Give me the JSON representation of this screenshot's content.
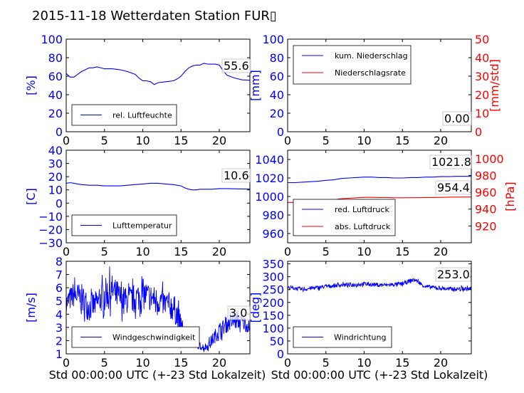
{
  "title": "2015-11-18 Wetterdaten Station FUR▯",
  "xlabel": "Std 00:00:00 UTC (+-23 Std Lokalzeit)",
  "colors": {
    "blue": "#0000ff",
    "red": "#ff0000",
    "axis": "#000000"
  },
  "chart_data": [
    {
      "type": "line",
      "panel": "humidity",
      "ylabel": "[%]",
      "xlim": [
        0,
        24
      ],
      "ylim": [
        0,
        100
      ],
      "xticks": [
        0,
        5,
        10,
        15,
        20
      ],
      "yticks": [
        0,
        20,
        40,
        60,
        80,
        100
      ],
      "legend": [
        "rel. Luftfeuchte"
      ],
      "last_value": "55.6",
      "series": [
        {
          "name": "rel. Luftfeuchte",
          "color": "#0000ff",
          "x": [
            0,
            0.5,
            1,
            1.5,
            2,
            2.5,
            3,
            3.5,
            4,
            5,
            6,
            7,
            8,
            9,
            9.5,
            10,
            10.5,
            11,
            11.5,
            12,
            13,
            14,
            14.5,
            15,
            15.5,
            16,
            16.5,
            17,
            17.5,
            18,
            18.5,
            19,
            19.5,
            20,
            20.5,
            21,
            22,
            23,
            24
          ],
          "y": [
            63,
            59,
            59,
            62,
            65,
            67,
            69,
            69,
            70,
            68,
            68,
            67,
            65,
            62,
            58,
            55,
            55,
            54,
            51,
            53,
            54,
            55,
            57,
            60,
            65,
            69,
            71,
            72,
            72,
            74,
            73,
            73,
            73,
            72,
            66,
            61,
            58,
            56,
            55.6
          ]
        }
      ]
    },
    {
      "type": "line",
      "panel": "precipitation",
      "ylabel": "[mm]",
      "ylabel_right": "[mm/std]",
      "xlim": [
        0,
        24
      ],
      "ylim": [
        0,
        100
      ],
      "ylim_right": [
        0,
        50
      ],
      "xticks": [
        0,
        5,
        10,
        15,
        20
      ],
      "yticks": [
        0,
        20,
        40,
        60,
        80,
        100
      ],
      "yticks_right": [
        0,
        10,
        20,
        30,
        40,
        50
      ],
      "legend": [
        "kum. Niederschlag",
        "Niederschlagsrate"
      ],
      "last_value": "0.00",
      "series": [
        {
          "name": "kum. Niederschlag",
          "color": "#0000ff",
          "x": [
            0,
            24
          ],
          "y": [
            0,
            0
          ]
        },
        {
          "name": "Niederschlagsrate",
          "color": "#ff0000",
          "x": [
            0,
            24
          ],
          "y": [
            0,
            0
          ]
        }
      ]
    },
    {
      "type": "line",
      "panel": "temperature",
      "ylabel": "[C]",
      "xlim": [
        0,
        24
      ],
      "ylim": [
        -30,
        40
      ],
      "xticks": [
        0,
        5,
        10,
        15,
        20
      ],
      "yticks": [
        -30,
        -20,
        -10,
        0,
        10,
        20,
        30,
        40
      ],
      "legend": [
        "Lufttemperatur"
      ],
      "last_value": "10.6",
      "series": [
        {
          "name": "Lufttemperatur",
          "color": "#0000ff",
          "x": [
            0,
            0.5,
            1,
            2,
            3,
            4,
            5,
            6,
            7,
            8,
            9,
            10,
            11,
            12,
            13,
            14,
            15,
            15.5,
            16,
            16.5,
            17,
            17.5,
            18,
            19,
            20,
            21,
            22,
            23,
            24
          ],
          "y": [
            15,
            15.5,
            15,
            14,
            13.5,
            13.5,
            13,
            13,
            13,
            13.5,
            14,
            14.5,
            15,
            15,
            14.5,
            14,
            13,
            11.5,
            10.5,
            10,
            10,
            10.5,
            10.5,
            10.5,
            11,
            11,
            10.8,
            10.7,
            10.6
          ]
        }
      ]
    },
    {
      "type": "line",
      "panel": "pressure",
      "ylabel": "[hPa]",
      "xlim": [
        0,
        24
      ],
      "ylim": [
        950,
        1050
      ],
      "ylim_right": [
        900,
        1010
      ],
      "xticks": [
        0,
        5,
        10,
        15,
        20
      ],
      "yticks": [
        960,
        980,
        1000,
        1020,
        1040
      ],
      "yticks_right": [
        920,
        940,
        960,
        980,
        1000
      ],
      "legend": [
        "red. Luftdruck",
        "abs. Luftdruck"
      ],
      "last_value": "1021.8",
      "last_value_right": "954.4",
      "series": [
        {
          "name": "red. Luftdruck",
          "color": "#0000ff",
          "axis": "left",
          "x": [
            0,
            1,
            2,
            3,
            4,
            5,
            6,
            7,
            8,
            9,
            10,
            11,
            12,
            13,
            14,
            15,
            16,
            17,
            18,
            19,
            20,
            21,
            22,
            23,
            24
          ],
          "y": [
            1015,
            1015,
            1015.5,
            1016,
            1016.5,
            1017.5,
            1018,
            1019.5,
            1020,
            1020.5,
            1021,
            1021,
            1020.5,
            1020.5,
            1020,
            1020,
            1020.5,
            1020.5,
            1021,
            1021,
            1021.5,
            1021.5,
            1021.8,
            1021.8,
            1021.8
          ]
        },
        {
          "name": "abs. Luftdruck",
          "color": "#ff0000",
          "axis": "right",
          "x": [
            0,
            1,
            2,
            3,
            4,
            5,
            6,
            7,
            8,
            9,
            10,
            11,
            12,
            13,
            14,
            15,
            16,
            17,
            18,
            19,
            20,
            21,
            22,
            23,
            24
          ],
          "y": [
            948,
            948,
            948.5,
            949,
            949.5,
            950.5,
            951,
            952.5,
            953,
            953.5,
            954,
            954,
            953.8,
            953.8,
            953.5,
            953.5,
            953.6,
            953.6,
            953.8,
            953.8,
            954,
            954.2,
            954.3,
            954.4,
            954.4
          ]
        }
      ]
    },
    {
      "type": "line",
      "panel": "windspeed",
      "ylabel": "[m/s]",
      "xlim": [
        0,
        24
      ],
      "ylim": [
        1,
        8
      ],
      "xticks": [
        0,
        5,
        10,
        15,
        20
      ],
      "yticks": [
        1,
        2,
        3,
        4,
        5,
        6,
        7,
        8
      ],
      "legend": [
        "Windgeschwindigkeit"
      ],
      "last_value": "3.0",
      "series": [
        {
          "name": "Windgeschwindigkeit",
          "color": "#0000ff",
          "noisy": true,
          "x": [
            0,
            1,
            2,
            3,
            4,
            5,
            6,
            7,
            8,
            9,
            10,
            11,
            12,
            13,
            14,
            14.5,
            15,
            15.5,
            16,
            16.5,
            17,
            17.5,
            18,
            18.5,
            19,
            20,
            21,
            22,
            23,
            24
          ],
          "y": [
            4.8,
            5.5,
            5.2,
            4.5,
            4.8,
            5.5,
            5.8,
            5.2,
            5.0,
            5.2,
            5.5,
            5.3,
            5.0,
            4.8,
            4.5,
            4.0,
            3.0,
            2.6,
            2.2,
            2.0,
            1.7,
            1.6,
            1.5,
            1.6,
            2.0,
            2.8,
            3.2,
            3.5,
            3.4,
            3.0
          ],
          "amplitude": [
            0.8,
            1.0,
            1.1,
            1.1,
            1.0,
            1.2,
            1.2,
            1.1,
            1.0,
            1.1,
            1.2,
            1.0,
            1.0,
            1.0,
            1.1,
            1.0,
            0.9,
            0.6,
            0.5,
            0.4,
            0.3,
            0.3,
            0.3,
            0.3,
            0.5,
            0.6,
            0.6,
            0.6,
            0.6,
            0.5
          ]
        }
      ]
    },
    {
      "type": "line",
      "panel": "winddirection",
      "ylabel": "[deg]",
      "xlim": [
        0,
        24
      ],
      "ylim": [
        0,
        360
      ],
      "xticks": [
        0,
        5,
        10,
        15,
        20
      ],
      "yticks": [
        0,
        50,
        100,
        150,
        200,
        250,
        300,
        350
      ],
      "legend": [
        "Windrichtung"
      ],
      "last_value": "253.0",
      "series": [
        {
          "name": "Windrichtung",
          "color": "#0000ff",
          "noisy": true,
          "x": [
            0,
            1,
            2,
            3,
            4,
            5,
            6,
            7,
            8,
            9,
            10,
            11,
            12,
            13,
            14,
            15,
            15.5,
            16,
            16.5,
            17,
            17.5,
            18,
            19,
            20,
            21,
            22,
            23,
            24
          ],
          "y": [
            258,
            255,
            250,
            255,
            258,
            262,
            265,
            268,
            268,
            270,
            272,
            270,
            268,
            268,
            270,
            272,
            278,
            285,
            288,
            282,
            270,
            262,
            258,
            255,
            252,
            252,
            253,
            253
          ],
          "amplitude": [
            8,
            8,
            8,
            8,
            8,
            8,
            8,
            8,
            8,
            8,
            8,
            8,
            8,
            8,
            8,
            8,
            8,
            8,
            8,
            8,
            8,
            8,
            8,
            8,
            8,
            8,
            8,
            8
          ]
        }
      ]
    }
  ]
}
